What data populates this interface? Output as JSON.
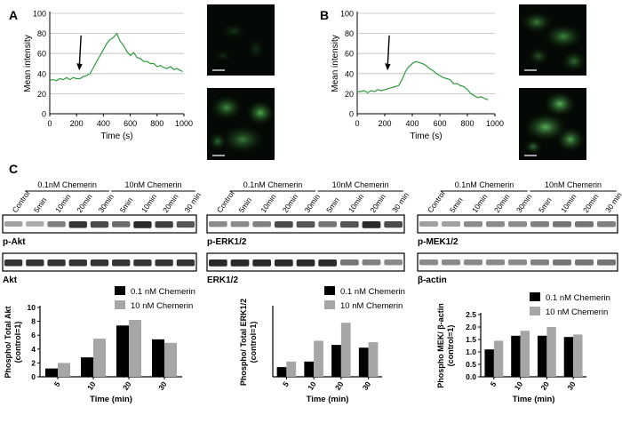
{
  "panel_labels": [
    "A",
    "B",
    "C"
  ],
  "scale_bar_text": "",
  "line_charts": {
    "A": {
      "ylabel": "Mean intensity",
      "xlabel": "Time (s)",
      "xticks": [
        "0",
        "200",
        "400",
        "600",
        "800",
        "1000"
      ],
      "yticks": [
        "0",
        "20",
        "40",
        "60",
        "80",
        "100"
      ]
    },
    "B": {
      "ylabel": "Mean intensity",
      "xlabel": "Time (s)",
      "xticks": [
        "0",
        "200",
        "400",
        "600",
        "800",
        "1000"
      ],
      "yticks": [
        "0",
        "20",
        "40",
        "60",
        "80",
        "100"
      ]
    }
  },
  "blots": [
    {
      "control": "Control",
      "groups": [
        "0.1nM Chemerin",
        "10nM Chemerin"
      ],
      "times": [
        "5min",
        "10min",
        "20min",
        "30min",
        "5min",
        "10min",
        "20min",
        "30 min"
      ],
      "top_label": "p-Akt",
      "bottom_label": "Akt",
      "top_intensity": [
        0.35,
        0.3,
        0.5,
        0.85,
        0.75,
        0.6,
        0.9,
        0.8,
        0.7
      ],
      "bottom_intensity": [
        0.85,
        0.85,
        0.85,
        0.85,
        0.85,
        0.85,
        0.85,
        0.85,
        0.85
      ]
    },
    {
      "control": "Control",
      "groups": [
        "0.1nM Chemerin",
        "10nM Chemerin"
      ],
      "times": [
        "5min",
        "10min",
        "20min",
        "30min",
        "5min",
        "10min",
        "20min",
        "30 min"
      ],
      "top_label": "p-ERK1/2",
      "bottom_label": "ERK1/2",
      "top_intensity": [
        0.45,
        0.45,
        0.5,
        0.75,
        0.7,
        0.55,
        0.7,
        0.9,
        0.75
      ],
      "bottom_intensity": [
        0.9,
        0.9,
        0.9,
        0.9,
        0.9,
        0.9,
        0.55,
        0.5,
        0.45
      ]
    },
    {
      "control": "Control",
      "groups": [
        "0.1nM Chemerin",
        "10nM Chemerin"
      ],
      "times": [
        "5min",
        "10min",
        "20min",
        "30min",
        "5min",
        "10min",
        "20min",
        "30 min"
      ],
      "top_label": "p-MEK1/2",
      "bottom_label": "β-actin",
      "top_intensity": [
        0.35,
        0.35,
        0.45,
        0.45,
        0.45,
        0.5,
        0.55,
        0.55,
        0.5
      ],
      "bottom_intensity": [
        0.45,
        0.45,
        0.45,
        0.45,
        0.45,
        0.5,
        0.55,
        0.55,
        0.55
      ]
    }
  ],
  "chart_data": [
    {
      "type": "line",
      "panel": "A",
      "xlabel": "Time (s)",
      "ylabel": "Mean intensity",
      "xlim": [
        0,
        1000
      ],
      "ylim": [
        0,
        100
      ],
      "grid": true,
      "annotation": "arrow at 220 s",
      "x": [
        0,
        25,
        50,
        75,
        100,
        125,
        150,
        175,
        200,
        225,
        250,
        275,
        300,
        325,
        350,
        375,
        400,
        425,
        450,
        475,
        500,
        525,
        550,
        575,
        600,
        625,
        650,
        675,
        700,
        725,
        750,
        775,
        800,
        825,
        850,
        875,
        900,
        925,
        950,
        975,
        990
      ],
      "y": [
        33,
        34,
        33,
        35,
        34,
        36,
        34,
        36,
        35,
        35,
        37,
        38,
        40,
        46,
        52,
        58,
        64,
        70,
        74,
        76,
        80,
        72,
        68,
        62,
        58,
        61,
        56,
        55,
        52,
        52,
        50,
        50,
        47,
        48,
        46,
        45,
        47,
        44,
        45,
        43,
        42
      ]
    },
    {
      "type": "line",
      "panel": "B",
      "xlabel": "Time (s)",
      "ylabel": "Mean intensity",
      "xlim": [
        0,
        1000
      ],
      "ylim": [
        0,
        100
      ],
      "grid": true,
      "annotation": "arrow at 220 s",
      "x": [
        0,
        25,
        50,
        75,
        100,
        125,
        150,
        175,
        200,
        225,
        250,
        275,
        300,
        325,
        350,
        375,
        400,
        425,
        450,
        475,
        500,
        525,
        550,
        575,
        600,
        625,
        650,
        675,
        700,
        725,
        750,
        775,
        800,
        825,
        850,
        875,
        900,
        925,
        950
      ],
      "y": [
        22,
        22,
        23,
        21,
        23,
        22,
        24,
        23,
        24,
        25,
        26,
        27,
        28,
        34,
        42,
        47,
        50,
        52,
        51,
        50,
        48,
        45,
        43,
        40,
        38,
        36,
        35,
        34,
        30,
        30,
        28,
        27,
        24,
        20,
        18,
        16,
        17,
        15,
        14
      ]
    },
    {
      "type": "bar",
      "panel": "C-Akt",
      "categories": [
        "5",
        "10",
        "20",
        "30"
      ],
      "series": [
        {
          "name": "0.1 nM Chemerin",
          "values": [
            1.2,
            2.8,
            7.4,
            5.4
          ]
        },
        {
          "name": "10 nM Chemerin",
          "values": [
            2.0,
            5.5,
            8.2,
            4.9
          ]
        }
      ],
      "xlabel": "Time (min)",
      "ylabel": "Phospho/ Total Akt (control=1)",
      "yticks": [
        0,
        2,
        4,
        6,
        8,
        10
      ],
      "ylim": [
        0,
        10
      ],
      "legend": "top-right",
      "colors": [
        "#000000",
        "#a6a6a6"
      ]
    },
    {
      "type": "bar",
      "panel": "C-ERK",
      "categories": [
        "5",
        "10",
        "20",
        "30"
      ],
      "series": [
        {
          "name": "0.1 nM Chemerin",
          "values": [
            0.7,
            1.1,
            2.3,
            2.1
          ]
        },
        {
          "name": "10 nM Chemerin",
          "values": [
            1.1,
            2.6,
            3.9,
            2.5
          ]
        }
      ],
      "xlabel": "Time (min)",
      "ylabel": "Phospho/ Total ERK1/2 (control=1)",
      "yticks": [],
      "ylim": [
        0,
        5
      ],
      "legend": "top-right",
      "colors": [
        "#000000",
        "#a6a6a6"
      ]
    },
    {
      "type": "bar",
      "panel": "C-MEK",
      "categories": [
        "5",
        "10",
        "20",
        "30"
      ],
      "series": [
        {
          "name": "0.1 nM Chemerin",
          "values": [
            1.1,
            1.65,
            1.65,
            1.6
          ]
        },
        {
          "name": "10 nM Chemerin",
          "values": [
            1.45,
            1.85,
            2.0,
            1.7
          ]
        }
      ],
      "xlabel": "Time (min)",
      "ylabel": "Phospho MEK/ β-actin (control=1)",
      "yticks": [
        "0.0",
        "0.5",
        "1.0",
        "1.5",
        "2.0",
        "2.5"
      ],
      "ylim": [
        0,
        2.5
      ],
      "legend": "top-right",
      "colors": [
        "#000000",
        "#a6a6a6"
      ]
    }
  ]
}
